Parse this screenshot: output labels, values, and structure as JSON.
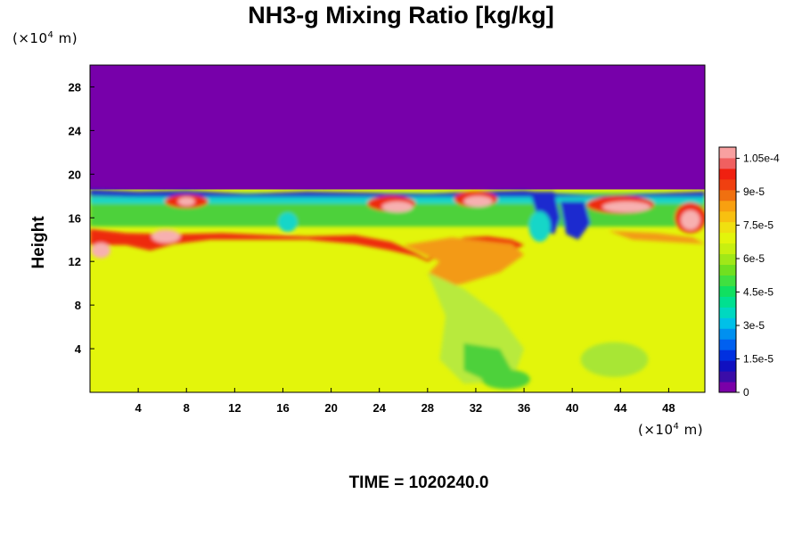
{
  "title": "NH3-g Mixing Ratio [kg/kg]",
  "y_unit": {
    "prefix": "(×10",
    "exp": "4",
    "suffix": " m)"
  },
  "x_unit": {
    "prefix": "(×10",
    "exp": "4",
    "suffix": " m)"
  },
  "time_label": "TIME = 1020240.0",
  "colors": {
    "top_purple": "#7700aa",
    "background_yellow": "#e3f50b",
    "green": "#4ed13a",
    "cyan": "#18d6c8",
    "blue": "#1d2ccf",
    "orange": "#f39a12",
    "red": "#ee2a10",
    "pink": "#f7b0b0"
  },
  "chart_data": {
    "type": "heatmap",
    "title": "NH3-g Mixing Ratio [kg/kg]",
    "xlabel": "",
    "ylabel": "Height",
    "xlim": [
      0,
      51
    ],
    "ylim": [
      0,
      30
    ],
    "x_ticks": [
      "4",
      "8",
      "12",
      "16",
      "20",
      "24",
      "28",
      "32",
      "36",
      "40",
      "44",
      "48"
    ],
    "y_ticks": [
      "4",
      "8",
      "12",
      "16",
      "20",
      "24",
      "28"
    ],
    "colorbar": {
      "range": [
        0,
        0.00011
      ],
      "tick_labels": [
        "0",
        "1.5e-5",
        "3e-5",
        "4.5e-5",
        "6e-5",
        "7.5e-5",
        "9e-5",
        "1.05e-4"
      ],
      "tick_values": [
        0,
        1.5e-05,
        3e-05,
        4.5e-05,
        6e-05,
        7.5e-05,
        9e-05,
        0.000105
      ],
      "colors": [
        "#7a00a8",
        "#3a0ca8",
        "#1010c0",
        "#0030e0",
        "#0060f0",
        "#0090f0",
        "#00c0e8",
        "#00d8c0",
        "#00e090",
        "#10e060",
        "#40e040",
        "#70e020",
        "#a0e818",
        "#c8f010",
        "#e3f50b",
        "#f0e010",
        "#f8c010",
        "#f8a010",
        "#f07010",
        "#f04010",
        "#f02010",
        "#f06060",
        "#f8a0a0"
      ]
    },
    "field_summary": {
      "above_18": 0,
      "below_15": 7.8e-05,
      "band_15_18_peak": 0.00011
    }
  }
}
